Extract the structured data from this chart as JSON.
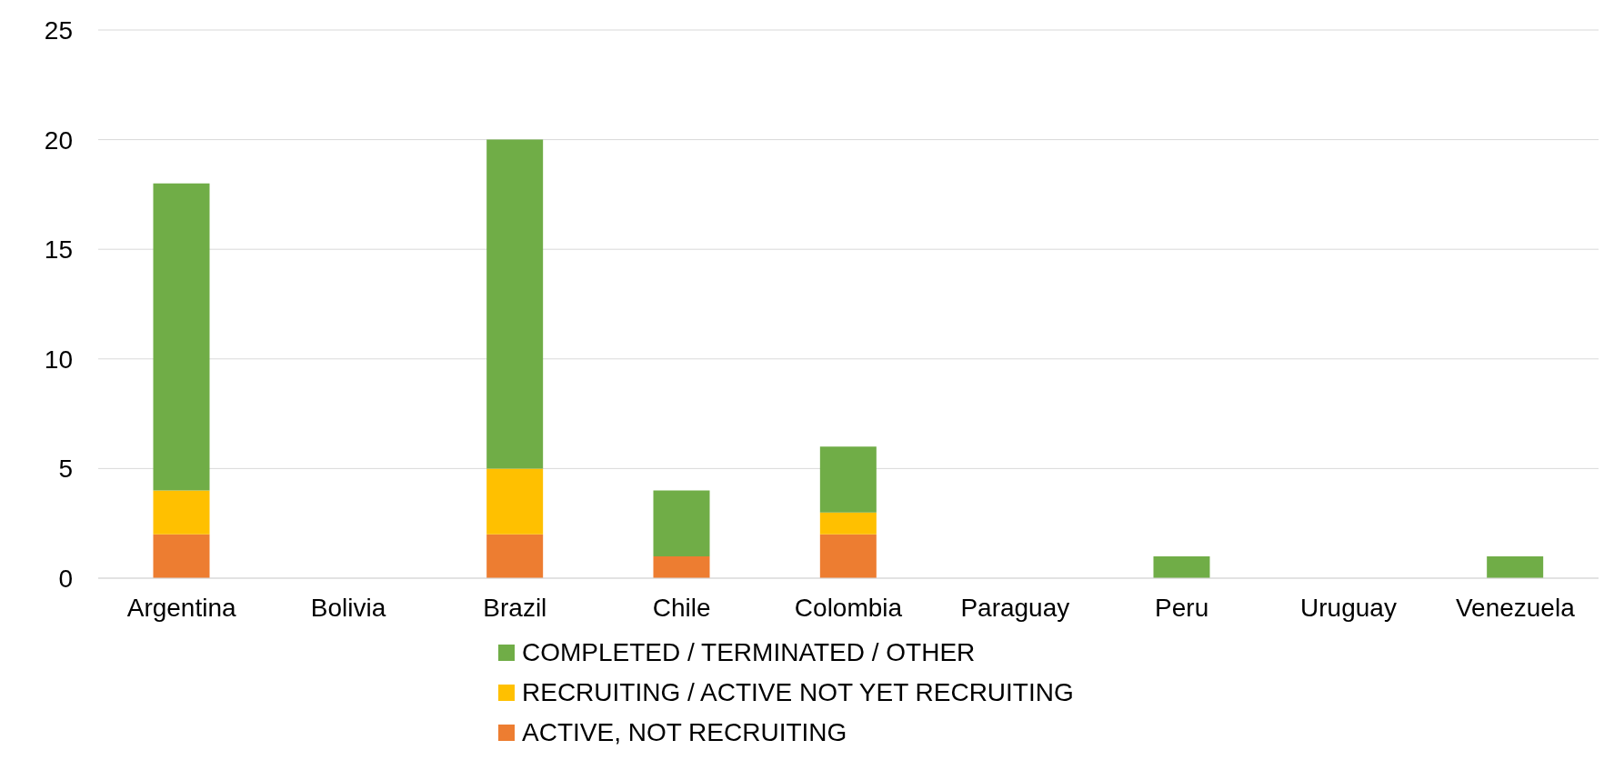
{
  "chart_data": {
    "type": "bar",
    "stacked": true,
    "categories": [
      "Argentina",
      "Bolivia",
      "Brazil",
      "Chile",
      "Colombia",
      "Paraguay",
      "Peru",
      "Uruguay",
      "Venezuela"
    ],
    "series": [
      {
        "name": "ACTIVE, NOT RECRUITING",
        "color": "#ed7d31",
        "values": [
          2,
          0,
          2,
          1,
          2,
          0,
          0,
          0,
          0
        ]
      },
      {
        "name": "RECRUITING / ACTIVE NOT YET RECRUITING",
        "color": "#ffc000",
        "values": [
          2,
          0,
          3,
          0,
          1,
          0,
          0,
          0,
          0
        ]
      },
      {
        "name": "COMPLETED / TERMINATED / OTHER",
        "color": "#70ad47",
        "values": [
          14,
          0,
          15,
          3,
          3,
          0,
          1,
          0,
          1
        ]
      }
    ],
    "ylim": [
      0,
      25
    ],
    "yticks": [
      0,
      5,
      10,
      15,
      20,
      25
    ],
    "grid": "y",
    "legend": "bottom"
  }
}
